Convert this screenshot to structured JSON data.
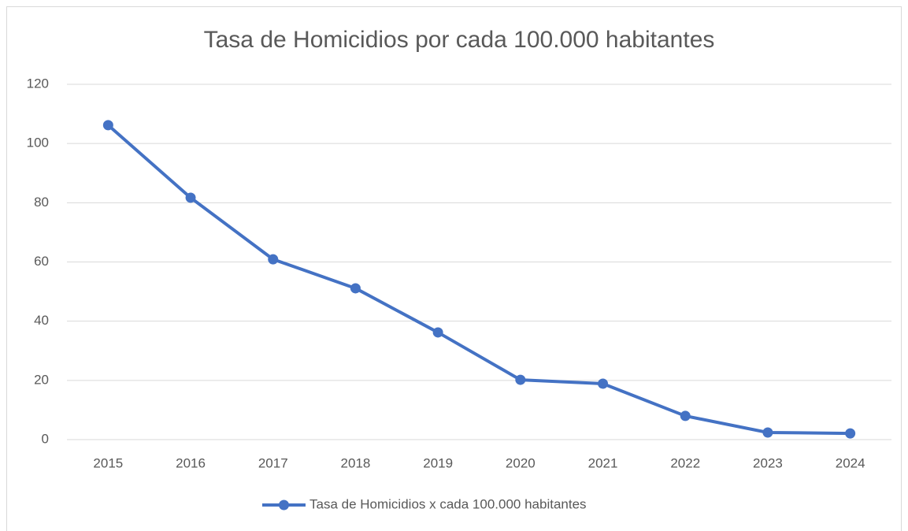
{
  "chart_data": {
    "type": "line",
    "title": "Tasa de Homicidios por cada 100.000 habitantes",
    "categories": [
      "2015",
      "2016",
      "2017",
      "2018",
      "2019",
      "2020",
      "2021",
      "2022",
      "2023",
      "2024"
    ],
    "series": [
      {
        "name": "Tasa de Homicidios x cada 100.000 habitantes",
        "color": "#4472c4",
        "values": [
          106.2,
          81.7,
          60.9,
          51.1,
          36.2,
          20.2,
          18.9,
          8.0,
          2.4,
          2.1
        ]
      }
    ],
    "ylim": [
      0,
      120
    ],
    "yticks": [
      0,
      20,
      40,
      60,
      80,
      100,
      120
    ],
    "grid": true,
    "legend": "bottom"
  }
}
